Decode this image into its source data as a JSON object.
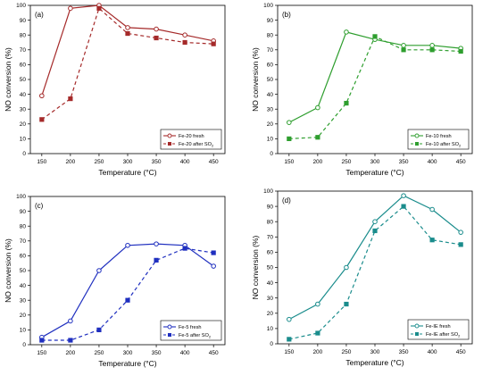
{
  "chart_data": [
    {
      "type": "line",
      "panel_label": "(a)",
      "xlabel": "Temperature (°C)",
      "ylabel": "NO conversion (%)",
      "xlim": [
        130,
        470
      ],
      "ylim": [
        0,
        100
      ],
      "xticks": [
        150,
        200,
        250,
        300,
        350,
        400,
        450
      ],
      "yticks": [
        0,
        10,
        20,
        30,
        40,
        50,
        60,
        70,
        80,
        90,
        100
      ],
      "x": [
        150,
        200,
        250,
        300,
        350,
        400,
        450
      ],
      "legend_position": "bottom-right",
      "series": [
        {
          "name": "Fe-20 fresh",
          "name_main": "Fe-20 fresh",
          "name_sub": "",
          "color": "#a52a2a",
          "dash": false,
          "marker": "circle-open",
          "values": [
            39,
            98,
            100,
            85,
            84,
            80,
            76
          ]
        },
        {
          "name": "Fe-20 after SO2",
          "name_main": "Fe-20 after SO",
          "name_sub": "2",
          "color": "#a52a2a",
          "dash": true,
          "marker": "square-filled",
          "values": [
            23,
            37,
            98,
            81,
            78,
            75,
            74
          ]
        }
      ]
    },
    {
      "type": "line",
      "panel_label": "(b)",
      "xlabel": "Temperature (°C)",
      "ylabel": "NO conversion (%)",
      "xlim": [
        130,
        470
      ],
      "ylim": [
        0,
        100
      ],
      "xticks": [
        150,
        200,
        250,
        300,
        350,
        400,
        450
      ],
      "yticks": [
        0,
        10,
        20,
        30,
        40,
        50,
        60,
        70,
        80,
        90,
        100
      ],
      "x": [
        150,
        200,
        250,
        300,
        350,
        400,
        450
      ],
      "legend_position": "bottom-right",
      "series": [
        {
          "name": "Fe-10 fresh",
          "name_main": "Fe-10 fresh",
          "name_sub": "",
          "color": "#2e9e2e",
          "dash": false,
          "marker": "circle-open",
          "values": [
            21,
            31,
            82,
            77,
            73,
            73,
            71
          ]
        },
        {
          "name": "Fe-10 after SO2",
          "name_main": "Fe-10 after SO",
          "name_sub": "2",
          "color": "#2e9e2e",
          "dash": true,
          "marker": "square-filled",
          "values": [
            10,
            11,
            34,
            79,
            70,
            70,
            69
          ]
        }
      ]
    },
    {
      "type": "line",
      "panel_label": "(c)",
      "xlabel": "Temperature (°C)",
      "ylabel": "NO conversion (%)",
      "xlim": [
        130,
        470
      ],
      "ylim": [
        0,
        100
      ],
      "xticks": [
        150,
        200,
        250,
        300,
        350,
        400,
        450
      ],
      "yticks": [
        0,
        10,
        20,
        30,
        40,
        50,
        60,
        70,
        80,
        90,
        100
      ],
      "x": [
        150,
        200,
        250,
        300,
        350,
        400,
        450
      ],
      "legend_position": "bottom-right",
      "series": [
        {
          "name": "Fe-5 fresh",
          "name_main": "Fe-5 fresh",
          "name_sub": "",
          "color": "#1f2fbf",
          "dash": false,
          "marker": "circle-open",
          "values": [
            5,
            16,
            50,
            67,
            68,
            67,
            53
          ]
        },
        {
          "name": "Fe-5 after SO2",
          "name_main": "Fe-5 after SO",
          "name_sub": "2",
          "color": "#1f2fbf",
          "dash": true,
          "marker": "square-filled",
          "values": [
            3,
            3,
            10,
            30,
            57,
            65,
            62
          ]
        }
      ]
    },
    {
      "type": "line",
      "panel_label": "(d)",
      "xlabel": "Temperature (°C)",
      "ylabel": "NO conversion (%)",
      "xlim": [
        130,
        470
      ],
      "ylim": [
        0,
        100
      ],
      "xticks": [
        150,
        200,
        250,
        300,
        350,
        400,
        450
      ],
      "yticks": [
        0,
        10,
        20,
        30,
        40,
        50,
        60,
        70,
        80,
        90,
        100
      ],
      "x": [
        150,
        200,
        250,
        300,
        350,
        400,
        450
      ],
      "legend_position": "bottom-right",
      "series": [
        {
          "name": "Fe-IE fresh",
          "name_main": "Fe-IE fresh",
          "name_sub": "",
          "color": "#1a8c8c",
          "dash": false,
          "marker": "circle-open",
          "values": [
            16,
            26,
            50,
            80,
            97,
            88,
            73
          ]
        },
        {
          "name": "Fe-IE after SO2",
          "name_main": "Fe-IE after SO",
          "name_sub": "2",
          "color": "#1a8c8c",
          "dash": true,
          "marker": "square-filled",
          "values": [
            3,
            7,
            26,
            74,
            90,
            68,
            65
          ]
        }
      ]
    }
  ]
}
